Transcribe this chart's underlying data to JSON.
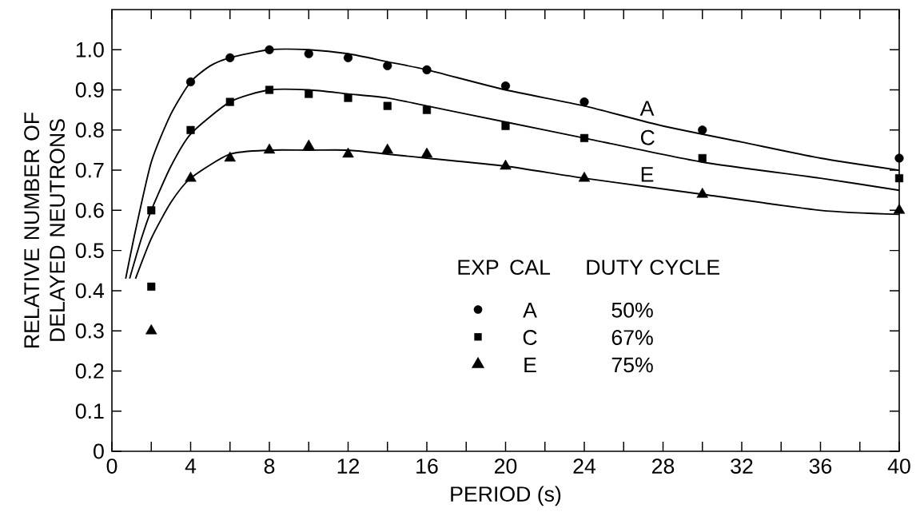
{
  "chart_data": {
    "type": "scatter",
    "xlabel": "PERIOD (s)",
    "ylabel": "RELATIVE NUMBER OF DELAYED NEUTRONS",
    "xlim": [
      0,
      40
    ],
    "ylim": [
      0,
      1.1
    ],
    "xticks": [
      0,
      {
        "value": 2,
        "label": null
      },
      4,
      {
        "value": 6,
        "label": null
      },
      8,
      {
        "value": 10,
        "label": null
      },
      12,
      {
        "value": 14,
        "label": null
      },
      16,
      {
        "value": 18,
        "label": null
      },
      20,
      {
        "value": 22,
        "label": null
      },
      24,
      {
        "value": 26,
        "label": null
      },
      28,
      {
        "value": 30,
        "label": null
      },
      32,
      {
        "value": 34,
        "label": null
      },
      36,
      {
        "value": 38,
        "label": null
      },
      40
    ],
    "yticks": [
      0,
      0.1,
      0.2,
      0.3,
      0.4,
      0.5,
      0.6,
      0.7,
      0.8,
      0.9,
      {
        "value": 1,
        "label": "1.0"
      }
    ],
    "grid": false,
    "legend": "bottom right",
    "annotations": [
      "EXP",
      "CAL",
      "DUTY CYCLE",
      "50%",
      "67%",
      "75%"
    ],
    "series": [
      {
        "marker": "circle",
        "color": "#000000",
        "x": [
          4,
          6,
          8,
          10,
          12,
          14,
          16,
          20,
          24,
          30,
          40
        ],
        "values": [
          0.92,
          0.98,
          1.0,
          0.99,
          0.98,
          0.96,
          0.95,
          0.91,
          0.87,
          0.8,
          0.73
        ]
      },
      {
        "marker": "square",
        "color": "#000000",
        "x": [
          2,
          2,
          4,
          6,
          8,
          10,
          12,
          14,
          16,
          20,
          24,
          30,
          40
        ],
        "values": [
          0.6,
          0.41,
          0.8,
          0.87,
          0.9,
          0.89,
          0.88,
          0.86,
          0.85,
          0.81,
          0.78,
          0.73,
          0.68
        ]
      },
      {
        "marker": "triangle",
        "color": "#000000",
        "x": [
          2,
          4,
          6,
          8,
          10,
          12,
          14,
          16,
          20,
          24,
          30,
          40
        ],
        "values": [
          0.3,
          0.68,
          0.73,
          0.75,
          0.76,
          0.74,
          0.75,
          0.74,
          0.71,
          0.68,
          0.64,
          0.6
        ]
      },
      {
        "name": "A",
        "type": "line",
        "marker": "none",
        "color": "#000000",
        "x": [
          0.7,
          1.2,
          2,
          3,
          4,
          5,
          6,
          8,
          10,
          12,
          14,
          16,
          20,
          24,
          28,
          32,
          36,
          40
        ],
        "values": [
          0.43,
          0.55,
          0.72,
          0.84,
          0.92,
          0.96,
          0.98,
          1.0,
          1.0,
          0.99,
          0.97,
          0.95,
          0.9,
          0.86,
          0.81,
          0.77,
          0.73,
          0.7
        ]
      },
      {
        "name": "C",
        "type": "line",
        "marker": "none",
        "color": "#000000",
        "x": [
          0.9,
          1.5,
          2,
          3,
          4,
          6,
          8,
          10,
          12,
          14,
          16,
          20,
          24,
          30,
          36,
          40
        ],
        "values": [
          0.43,
          0.53,
          0.6,
          0.71,
          0.79,
          0.87,
          0.9,
          0.9,
          0.89,
          0.88,
          0.86,
          0.82,
          0.78,
          0.72,
          0.68,
          0.65
        ]
      },
      {
        "name": "E",
        "type": "line",
        "marker": "none",
        "color": "#000000",
        "x": [
          1.2,
          2,
          3,
          4,
          6,
          8,
          10,
          12,
          14,
          16,
          20,
          24,
          30,
          36,
          40
        ],
        "values": [
          0.43,
          0.53,
          0.62,
          0.68,
          0.74,
          0.75,
          0.75,
          0.75,
          0.74,
          0.73,
          0.71,
          0.68,
          0.64,
          0.6,
          0.59
        ]
      }
    ]
  }
}
